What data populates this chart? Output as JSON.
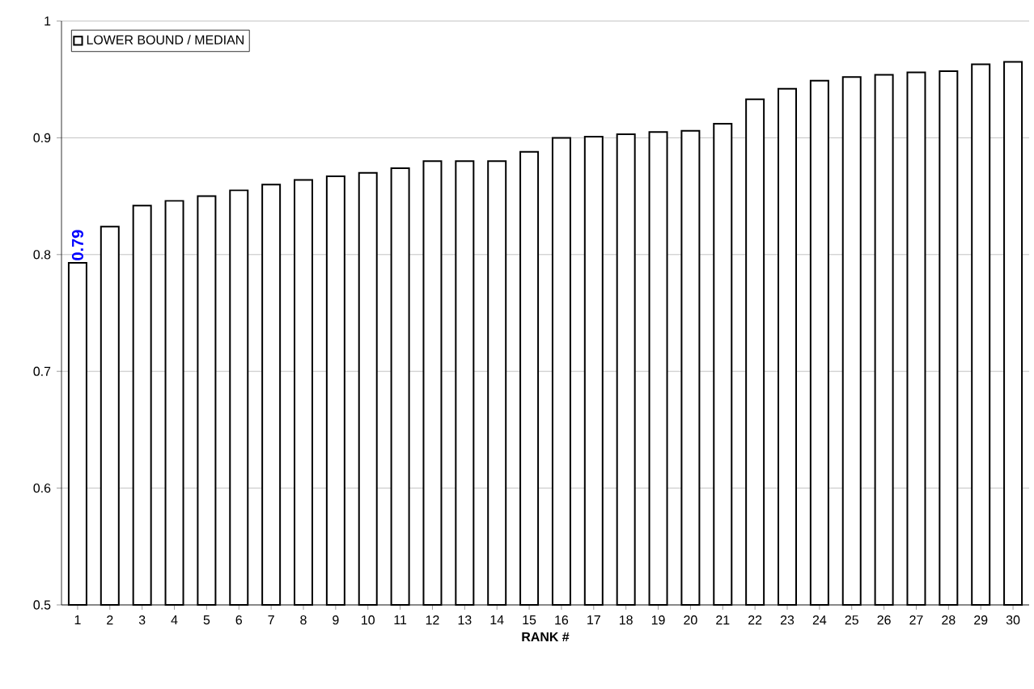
{
  "chart_data": {
    "type": "bar",
    "xlabel": "RANK #",
    "categories": [
      "1",
      "2",
      "3",
      "4",
      "5",
      "6",
      "7",
      "8",
      "9",
      "10",
      "11",
      "12",
      "13",
      "14",
      "15",
      "16",
      "17",
      "18",
      "19",
      "20",
      "21",
      "22",
      "23",
      "24",
      "25",
      "26",
      "27",
      "28",
      "29",
      "30"
    ],
    "series": [
      {
        "name": "LOWER BOUND / MEDIAN",
        "color": "#ffffff",
        "values": [
          0.793,
          0.824,
          0.842,
          0.846,
          0.85,
          0.855,
          0.86,
          0.864,
          0.867,
          0.87,
          0.874,
          0.88,
          0.88,
          0.88,
          0.888,
          0.9,
          0.901,
          0.903,
          0.905,
          0.906,
          0.912,
          0.933,
          0.942,
          0.949,
          0.952,
          0.954,
          0.956,
          0.957,
          0.963,
          0.965
        ],
        "value_labels": [
          "0.79",
          null,
          null,
          null,
          null,
          null,
          null,
          null,
          null,
          null,
          null,
          null,
          null,
          null,
          null,
          null,
          null,
          null,
          null,
          null,
          null,
          null,
          null,
          null,
          null,
          null,
          null,
          null,
          null,
          null
        ]
      }
    ],
    "ylim": [
      0.5,
      1
    ],
    "yticks": [
      0.5,
      0.6,
      0.7,
      0.8,
      0.9,
      1
    ],
    "grid": "y",
    "legend": "top left"
  }
}
